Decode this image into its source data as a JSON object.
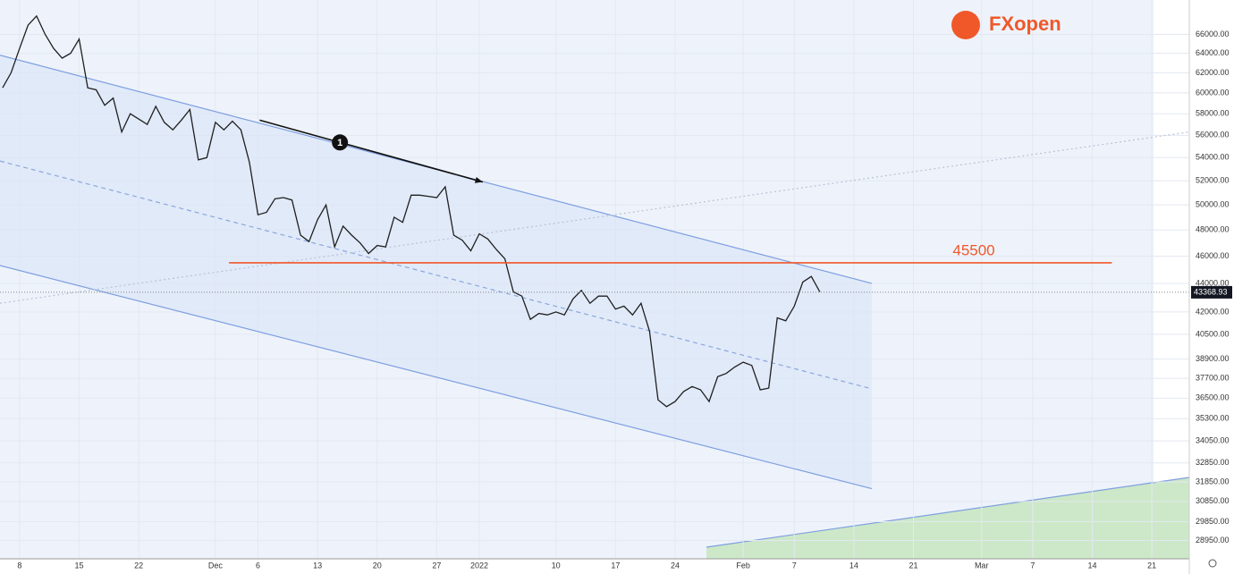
{
  "chart_data": {
    "type": "line",
    "logo": "FXopen",
    "log_scale": true,
    "grid": true,
    "color": "#1f1f1f",
    "xlim": [
      -2.3,
      137.4
    ],
    "ylim": [
      28100,
      69800
    ],
    "xticks": [
      {
        "value": 0,
        "label": "8"
      },
      {
        "value": 7,
        "label": "15"
      },
      {
        "value": 14,
        "label": "22"
      },
      {
        "value": 23,
        "label": "Dec"
      },
      {
        "value": 28,
        "label": "6"
      },
      {
        "value": 35,
        "label": "13"
      },
      {
        "value": 42,
        "label": "20"
      },
      {
        "value": 49,
        "label": "27"
      },
      {
        "value": 54,
        "label": "2022"
      },
      {
        "value": 63,
        "label": "10"
      },
      {
        "value": 70,
        "label": "17"
      },
      {
        "value": 77,
        "label": "24"
      },
      {
        "value": 85,
        "label": "Feb"
      },
      {
        "value": 91,
        "label": "7"
      },
      {
        "value": 98,
        "label": "14"
      },
      {
        "value": 105,
        "label": "21"
      },
      {
        "value": 113,
        "label": "Mar"
      },
      {
        "value": 119,
        "label": "7"
      },
      {
        "value": 126,
        "label": "14"
      },
      {
        "value": 133,
        "label": "21"
      }
    ],
    "yticks": [
      {
        "value": 66000,
        "label": "66000.00"
      },
      {
        "value": 64000,
        "label": "64000.00"
      },
      {
        "value": 62000,
        "label": "62000.00"
      },
      {
        "value": 60000,
        "label": "60000.00"
      },
      {
        "value": 58000,
        "label": "58000.00"
      },
      {
        "value": 56000,
        "label": "56000.00"
      },
      {
        "value": 54000,
        "label": "54000.00"
      },
      {
        "value": 52000,
        "label": "52000.00"
      },
      {
        "value": 50000,
        "label": "50000.00"
      },
      {
        "value": 48000,
        "label": "48000.00"
      },
      {
        "value": 46000,
        "label": "46000.00"
      },
      {
        "value": 44000,
        "label": "44000.00"
      },
      {
        "value": 42000,
        "label": "42000.00"
      },
      {
        "value": 40500,
        "label": "40500.00"
      },
      {
        "value": 38900,
        "label": "38900.00"
      },
      {
        "value": 37700,
        "label": "37700.00"
      },
      {
        "value": 36500,
        "label": "36500.00"
      },
      {
        "value": 35300,
        "label": "35300.00"
      },
      {
        "value": 34050,
        "label": "34050.00"
      },
      {
        "value": 32850,
        "label": "32850.00"
      },
      {
        "value": 31850,
        "label": "31850.00"
      },
      {
        "value": 30850,
        "label": "30850.00"
      },
      {
        "value": 29850,
        "label": "29850.00"
      },
      {
        "value": 28950,
        "label": "28950.00"
      }
    ],
    "x": [
      -2,
      -1,
      0,
      1,
      2,
      3,
      4,
      5,
      6,
      7,
      8,
      9,
      10,
      11,
      12,
      13,
      14,
      15,
      16,
      17,
      18,
      19,
      20,
      21,
      22,
      23,
      24,
      25,
      26,
      27,
      28,
      29,
      30,
      31,
      32,
      33,
      34,
      35,
      36,
      37,
      38,
      39,
      40,
      41,
      42,
      43,
      44,
      45,
      46,
      47,
      48,
      49,
      50,
      51,
      52,
      53,
      54,
      55,
      56,
      57,
      58,
      59,
      60,
      61,
      62,
      63,
      64,
      65,
      66,
      67,
      68,
      69,
      70,
      71,
      72,
      73,
      74,
      75,
      76,
      77,
      78,
      79,
      80,
      81,
      82,
      83,
      84,
      85,
      86,
      87,
      88,
      89,
      90,
      91,
      92,
      93,
      94
    ],
    "values": [
      60500,
      62000,
      64500,
      67000,
      68000,
      66000,
      64500,
      63500,
      64000,
      65500,
      60500,
      60300,
      58800,
      59500,
      56300,
      58000,
      57500,
      57000,
      58700,
      57200,
      56500,
      57400,
      58400,
      53800,
      54000,
      57200,
      56500,
      57300,
      56500,
      53600,
      49200,
      49400,
      50500,
      50600,
      50400,
      47600,
      47100,
      48800,
      50000,
      46700,
      48300,
      47600,
      47000,
      46200,
      46800,
      46700,
      49000,
      48600,
      50800,
      50800,
      50700,
      50600,
      51500,
      47600,
      47200,
      46400,
      47700,
      47300,
      46500,
      45800,
      43400,
      43100,
      41500,
      41900,
      41800,
      42000,
      41800,
      42900,
      43500,
      42600,
      43100,
      43100,
      42200,
      42400,
      41800,
      42600,
      40700,
      36400,
      36000,
      36300,
      36900,
      37200,
      37000,
      36300,
      37800,
      38000,
      38400,
      38700,
      38500,
      37000,
      37100,
      41600,
      41400,
      42400,
      44100,
      44500,
      43400
    ],
    "lines": [
      {
        "style": "solid",
        "color": "#7e9fe0",
        "x": [
          -2.3,
          100.1
        ],
        "y": [
          63800,
          44000
        ]
      },
      {
        "style": "dashed",
        "color": "#8aa6dc",
        "x": [
          -2.3,
          99.8
        ],
        "y": [
          53700,
          37100
        ]
      },
      {
        "style": "solid",
        "color": "#7e9fe0",
        "x": [
          -2.3,
          100.1
        ],
        "y": [
          45300,
          31500
        ]
      },
      {
        "style": "dotted",
        "color": "#b8c2d6",
        "x": [
          -2.3,
          137.4
        ],
        "y": [
          42600,
          56300
        ]
      }
    ],
    "arrow": {
      "x": [
        28.2,
        54.4
      ],
      "y": [
        57400,
        51900
      ],
      "label": "1"
    },
    "resistance": {
      "value": 45500,
      "color": "#f0582a",
      "x": [
        24.6,
        128.3
      ]
    },
    "last_price": 43368.93
  }
}
